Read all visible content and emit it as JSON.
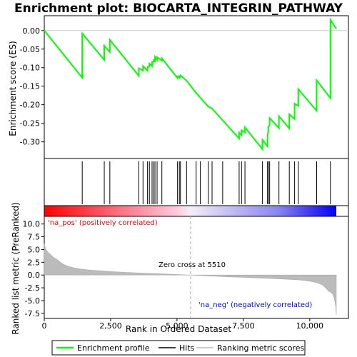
{
  "chart_data": {
    "type": "line",
    "title": "Enrichment plot: BIOCARTA_INTEGRIN_PATHWAY",
    "xlabel": "Rank in Ordered Dataset",
    "ylabel_top": "Enrichment score (ES)",
    "ylabel_bottom": "Ranked list metric (PreRanked)",
    "xlim": [
      0,
      11000
    ],
    "x_ticks": [
      0,
      2500,
      5000,
      7500,
      10000
    ],
    "x_tick_labels": [
      "0",
      "2,500",
      "5,000",
      "7,500",
      "10,000"
    ],
    "es_ylim": [
      -0.345,
      0.04
    ],
    "es_y_ticks": [
      0.0,
      -0.05,
      -0.1,
      -0.15,
      -0.2,
      -0.25,
      -0.3
    ],
    "es_y_tick_labels": [
      "0.00",
      "-0.05",
      "-0.10",
      "-0.15",
      "-0.20",
      "-0.25",
      "-0.30"
    ],
    "metric_ylim": [
      -8.5,
      11.5
    ],
    "metric_y_ticks": [
      10.0,
      7.5,
      5.0,
      2.5,
      0.0,
      -2.5,
      -5.0,
      -7.5
    ],
    "metric_y_tick_labels": [
      "10.0",
      "7.5",
      "5.0",
      "2.5",
      "0.0",
      "-2.5",
      "-5.0",
      "-7.5"
    ],
    "hits": [
      1430,
      2260,
      2470,
      3560,
      3720,
      3890,
      3960,
      4060,
      4120,
      4170,
      4250,
      4430,
      5020,
      5090,
      5130,
      5360,
      5720,
      5880,
      6180,
      6320,
      6720,
      7340,
      7430,
      7560,
      8220,
      8410,
      8440,
      8490,
      8840,
      9230,
      9430,
      9570,
      10260,
      10780
    ],
    "es_points": [
      [
        0,
        0.0
      ],
      [
        1429,
        -0.127
      ],
      [
        1430,
        -0.008
      ],
      [
        2259,
        -0.079
      ],
      [
        2260,
        -0.041
      ],
      [
        2469,
        -0.058
      ],
      [
        2470,
        -0.025
      ],
      [
        3559,
        -0.122
      ],
      [
        3560,
        -0.102
      ],
      [
        3719,
        -0.108
      ],
      [
        3720,
        -0.096
      ],
      [
        3889,
        -0.108
      ],
      [
        3890,
        -0.098
      ],
      [
        3959,
        -0.097
      ],
      [
        3960,
        -0.089
      ],
      [
        4059,
        -0.096
      ],
      [
        4060,
        -0.085
      ],
      [
        4119,
        -0.084
      ],
      [
        4120,
        -0.078
      ],
      [
        4169,
        -0.085
      ],
      [
        4170,
        -0.071
      ],
      [
        4249,
        -0.079
      ],
      [
        4250,
        -0.072
      ],
      [
        4429,
        -0.081
      ],
      [
        4430,
        -0.075
      ],
      [
        5019,
        -0.128
      ],
      [
        5020,
        -0.124
      ],
      [
        5089,
        -0.127
      ],
      [
        5090,
        -0.123
      ],
      [
        5129,
        -0.124
      ],
      [
        5130,
        -0.121
      ],
      [
        5359,
        -0.135
      ],
      [
        5720,
        -0.168
      ],
      [
        5880,
        -0.181
      ],
      [
        6180,
        -0.205
      ],
      [
        6320,
        -0.21
      ],
      [
        6720,
        -0.242
      ],
      [
        7339,
        -0.291
      ],
      [
        7340,
        -0.275
      ],
      [
        7429,
        -0.282
      ],
      [
        7430,
        -0.269
      ],
      [
        7559,
        -0.275
      ],
      [
        7560,
        -0.261
      ],
      [
        8219,
        -0.32
      ],
      [
        8220,
        -0.295
      ],
      [
        8409,
        -0.312
      ],
      [
        8410,
        -0.281
      ],
      [
        8439,
        -0.273
      ],
      [
        8440,
        -0.26
      ],
      [
        8489,
        -0.255
      ],
      [
        8490,
        -0.236
      ],
      [
        8839,
        -0.263
      ],
      [
        8840,
        -0.231
      ],
      [
        9229,
        -0.264
      ],
      [
        9230,
        -0.226
      ],
      [
        9429,
        -0.238
      ],
      [
        9430,
        -0.197
      ],
      [
        9569,
        -0.203
      ],
      [
        9570,
        -0.158
      ],
      [
        10259,
        -0.216
      ],
      [
        10260,
        -0.134
      ],
      [
        10779,
        -0.182
      ],
      [
        10780,
        0.029
      ],
      [
        11000,
        0.005
      ]
    ],
    "metric_points": [
      [
        0,
        6.1
      ],
      [
        60,
        5.0
      ],
      [
        150,
        4.4
      ],
      [
        260,
        3.9
      ],
      [
        360,
        3.4
      ],
      [
        460,
        3.1
      ],
      [
        560,
        2.7
      ],
      [
        660,
        2.3
      ],
      [
        760,
        2.0
      ],
      [
        900,
        1.7
      ],
      [
        1100,
        1.45
      ],
      [
        1350,
        1.2
      ],
      [
        1700,
        0.98
      ],
      [
        2100,
        0.82
      ],
      [
        2600,
        0.66
      ],
      [
        3100,
        0.52
      ],
      [
        3600,
        0.4
      ],
      [
        4100,
        0.3
      ],
      [
        4600,
        0.2
      ],
      [
        5100,
        0.08
      ],
      [
        5510,
        0.0
      ],
      [
        6000,
        -0.12
      ],
      [
        6500,
        -0.25
      ],
      [
        7000,
        -0.36
      ],
      [
        7500,
        -0.46
      ],
      [
        8000,
        -0.56
      ],
      [
        8500,
        -0.66
      ],
      [
        9000,
        -0.78
      ],
      [
        9500,
        -0.92
      ],
      [
        9800,
        -1.05
      ],
      [
        10000,
        -1.2
      ],
      [
        10200,
        -1.4
      ],
      [
        10350,
        -1.65
      ],
      [
        10500,
        -2.0
      ],
      [
        10620,
        -2.6
      ],
      [
        10700,
        -3.1
      ],
      [
        10800,
        -3.4
      ],
      [
        10870,
        -3.8
      ],
      [
        10920,
        -4.5
      ],
      [
        10960,
        -5.4
      ],
      [
        10985,
        -6.5
      ],
      [
        11000,
        -7.8
      ]
    ],
    "zero_cross_rank": 5510,
    "zero_cross_label": "Zero cross at 5510",
    "pos_label": "'na_pos' (positively correlated)",
    "neg_label": "'na_neg' (negatively correlated)",
    "legend": [
      {
        "name": "Enrichment profile",
        "color": "#00ff00"
      },
      {
        "name": "Hits",
        "color": "#000000"
      },
      {
        "name": "Ranking metric scores",
        "color": "#bbbbbb"
      }
    ],
    "colors": {
      "es_line": "#00ff00",
      "metric_fill": "#bbbbbb",
      "pos_label": "#ff0000",
      "neg_label": "#0000ff",
      "zero_cross_line": "#aaaaaa"
    }
  }
}
